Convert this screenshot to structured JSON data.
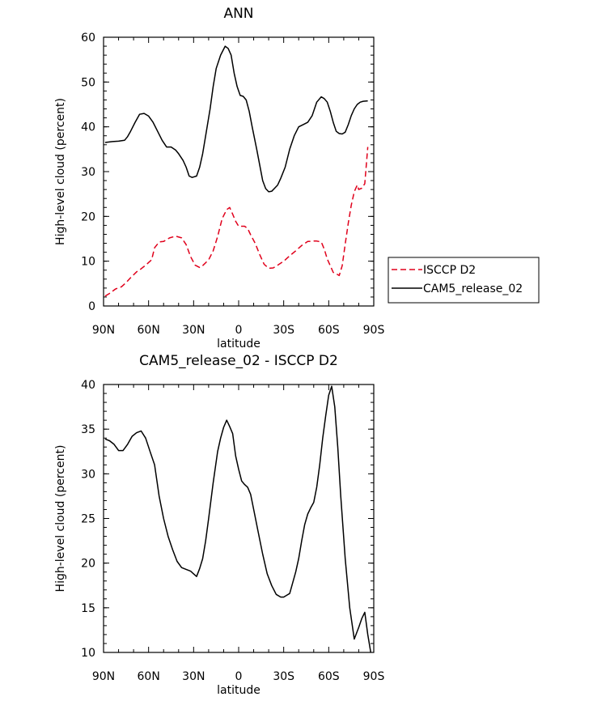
{
  "chart_data": [
    {
      "type": "line",
      "title": "ANN",
      "xlabel": "latitude",
      "ylabel": "High-level cloud (percent)",
      "xlim": [
        -90,
        90
      ],
      "ylim": [
        0,
        60
      ],
      "x_ticks": [
        -90,
        -60,
        -30,
        0,
        30,
        60,
        90
      ],
      "x_tick_labels": [
        "90N",
        "60N",
        "30N",
        "0",
        "30S",
        "60S",
        "90S"
      ],
      "y_ticks": [
        0,
        10,
        20,
        30,
        40,
        50,
        60
      ],
      "y_tick_labels": [
        "0",
        "10",
        "20",
        "30",
        "40",
        "50",
        "60"
      ],
      "grid": false,
      "legend": "right",
      "series": [
        {
          "name": "ISCCP D2",
          "color": "#e0001b",
          "dash": "dashed",
          "x": [
            -89,
            -86,
            -82,
            -78,
            -75,
            -72,
            -68,
            -65,
            -62,
            -58,
            -56,
            -53,
            -50,
            -46,
            -42,
            -38,
            -35,
            -32,
            -29,
            -26,
            -24,
            -20,
            -17,
            -14,
            -11,
            -8,
            -6,
            -4,
            -2,
            0,
            2,
            4,
            6,
            8,
            11,
            14,
            17,
            20,
            23,
            26,
            30,
            34,
            38,
            42,
            46,
            50,
            52,
            55,
            57,
            59,
            61,
            63,
            65,
            67,
            69,
            71,
            73,
            75,
            77,
            79,
            80,
            82,
            84,
            86
          ],
          "y": [
            2.2,
            2.8,
            3.8,
            4.3,
            5.2,
            6.3,
            7.6,
            8.3,
            9.1,
            10.3,
            13.0,
            14.3,
            14.4,
            15.2,
            15.6,
            15.2,
            13.7,
            11.0,
            9.1,
            8.6,
            9.0,
            10.3,
            12.3,
            15.5,
            19.5,
            21.5,
            22.0,
            20.5,
            18.9,
            17.8,
            17.8,
            17.8,
            17.3,
            15.9,
            14.0,
            11.5,
            9.3,
            8.4,
            8.5,
            9.1,
            10.0,
            11.2,
            12.3,
            13.5,
            14.4,
            14.5,
            14.5,
            14.3,
            12.7,
            10.5,
            9.0,
            7.5,
            7.2,
            6.8,
            9.0,
            13.8,
            18.5,
            22.5,
            25.5,
            27.0,
            26.0,
            26.3,
            27.3,
            35.5
          ]
        },
        {
          "name": "CAM5_release_02",
          "color": "#000000",
          "dash": "solid",
          "x": [
            -89,
            -84,
            -80,
            -76,
            -74,
            -72,
            -69,
            -66,
            -63,
            -60,
            -57,
            -54,
            -51,
            -48,
            -45,
            -42,
            -40,
            -37,
            -35,
            -33,
            -31,
            -28,
            -26,
            -24,
            -22,
            -19,
            -17,
            -15,
            -12,
            -9,
            -7,
            -5,
            -3,
            -1,
            1,
            3,
            5,
            7,
            9,
            12,
            14,
            16,
            18,
            20,
            22,
            24,
            26,
            28,
            31,
            34,
            37,
            40,
            43,
            46,
            49,
            52,
            55,
            57,
            59,
            61,
            63,
            65,
            67,
            69,
            71,
            73,
            75,
            77,
            79,
            81,
            83,
            86
          ],
          "y": [
            36.5,
            36.7,
            36.8,
            37.0,
            37.8,
            39.0,
            41.0,
            42.8,
            43.0,
            42.4,
            41.0,
            39.0,
            37.0,
            35.5,
            35.5,
            34.8,
            34.0,
            32.5,
            31.0,
            29.0,
            28.7,
            29.0,
            31.0,
            34.0,
            38.0,
            44.0,
            49.0,
            53.0,
            56.0,
            58.0,
            57.5,
            56.0,
            52.0,
            49.0,
            47.0,
            46.8,
            46.0,
            43.5,
            40.0,
            35.0,
            31.5,
            28.0,
            26.2,
            25.5,
            25.6,
            26.3,
            27.0,
            28.5,
            31.0,
            35.0,
            38.0,
            40.0,
            40.5,
            41.0,
            42.5,
            45.5,
            46.7,
            46.3,
            45.5,
            43.5,
            41.0,
            39.0,
            38.5,
            38.4,
            38.8,
            40.5,
            42.5,
            44.0,
            45.0,
            45.5,
            45.7,
            45.8
          ]
        }
      ]
    },
    {
      "type": "line",
      "title": "CAM5_release_02 - ISCCP D2",
      "xlabel": "latitude",
      "ylabel": "High-level cloud (percent)",
      "xlim": [
        -90,
        90
      ],
      "ylim": [
        10,
        40
      ],
      "x_ticks": [
        -90,
        -60,
        -30,
        0,
        30,
        60,
        90
      ],
      "x_tick_labels": [
        "90N",
        "60N",
        "30N",
        "0",
        "30S",
        "60S",
        "90S"
      ],
      "y_ticks": [
        10,
        15,
        20,
        25,
        30,
        35,
        40
      ],
      "y_tick_labels": [
        "10",
        "15",
        "20",
        "25",
        "30",
        "35",
        "40"
      ],
      "grid": false,
      "series": [
        {
          "color": "#000000",
          "dash": "solid",
          "x": [
            -89,
            -86,
            -83,
            -80,
            -77,
            -74,
            -71,
            -68,
            -65,
            -62,
            -59,
            -56,
            -53,
            -50,
            -47,
            -44,
            -41,
            -38,
            -35,
            -32,
            -30,
            -28,
            -26,
            -24,
            -22,
            -20,
            -17,
            -14,
            -12,
            -10,
            -8,
            -6,
            -4,
            -2,
            0,
            2,
            4,
            6,
            8,
            10,
            13,
            16,
            19,
            22,
            25,
            28,
            30,
            32,
            34,
            36,
            38,
            40,
            42,
            44,
            46,
            48,
            50,
            52,
            54,
            56,
            58,
            60,
            62,
            64,
            66,
            68,
            71,
            74,
            77,
            80,
            82,
            84,
            86,
            88
          ],
          "y": [
            33.9,
            33.7,
            33.3,
            32.6,
            32.6,
            33.3,
            34.2,
            34.6,
            34.8,
            34.0,
            32.5,
            31.0,
            27.5,
            25.0,
            23.0,
            21.5,
            20.2,
            19.5,
            19.3,
            19.1,
            18.8,
            18.5,
            19.4,
            20.5,
            22.5,
            25.0,
            29.0,
            32.5,
            34.0,
            35.2,
            36.0,
            35.3,
            34.5,
            32.0,
            30.5,
            29.2,
            28.8,
            28.5,
            27.7,
            26.0,
            23.5,
            21.0,
            18.8,
            17.5,
            16.5,
            16.2,
            16.2,
            16.4,
            16.6,
            17.8,
            19.0,
            20.5,
            22.5,
            24.3,
            25.5,
            26.2,
            26.8,
            28.5,
            31.0,
            34.0,
            36.5,
            38.8,
            39.8,
            37.5,
            33.0,
            27.5,
            20.5,
            15.0,
            11.5,
            12.8,
            13.8,
            14.5,
            12.0,
            10.0
          ]
        }
      ]
    }
  ]
}
